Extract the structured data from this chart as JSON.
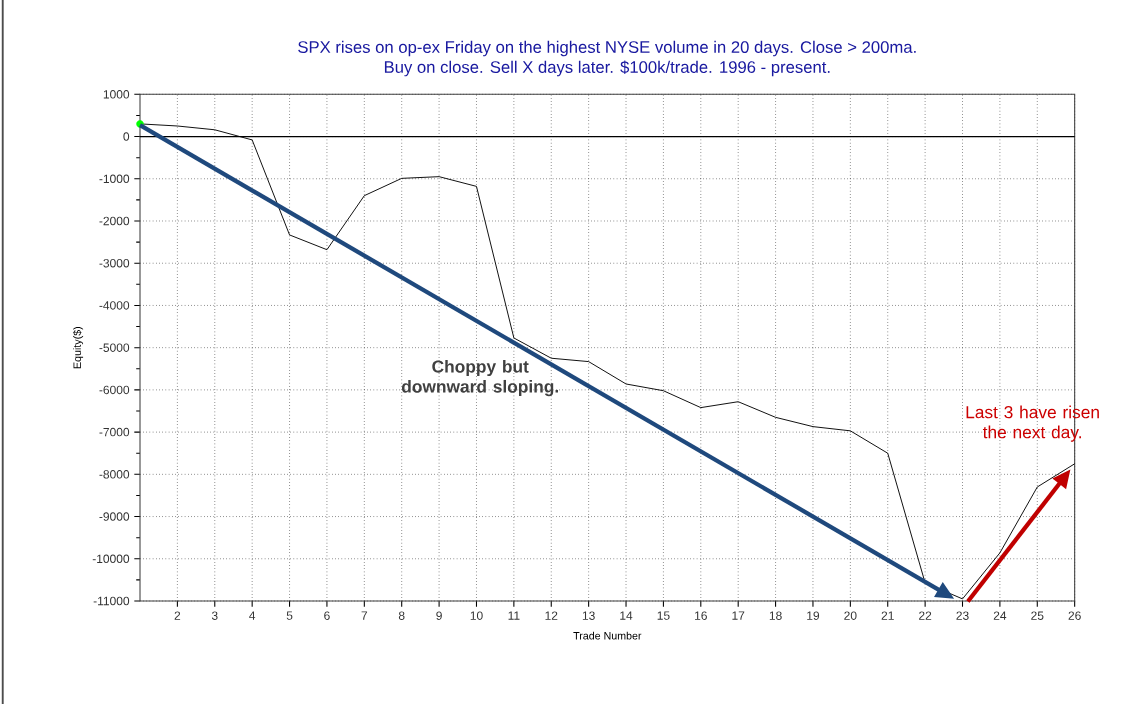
{
  "chart_data": {
    "type": "line",
    "title": "SPX rises on op-ex Friday on the highest NYSE volume in 20 days. Close > 200ma.\nBuy on close. Sell X days later. $100k/trade. 1996 - present.",
    "xlabel": "Trade Number",
    "ylabel": "Equity($)",
    "x": [
      1,
      2,
      3,
      4,
      5,
      6,
      7,
      8,
      9,
      10,
      11,
      12,
      13,
      14,
      15,
      16,
      17,
      18,
      19,
      20,
      21,
      22,
      23,
      24,
      25,
      26
    ],
    "series": [
      {
        "color": "#000000",
        "values": [
          300,
          250,
          160,
          -80,
          -2330,
          -2680,
          -1400,
          -990,
          -950,
          -1180,
          -4770,
          -5250,
          -5330,
          -5860,
          -6020,
          -6420,
          -6280,
          -6650,
          -6870,
          -6970,
          -7500,
          -10570,
          -10950,
          -9860,
          -8300,
          -7750
        ]
      },
      {
        "type": "scatter",
        "color": "#00ff00",
        "x": [
          1
        ],
        "values": [
          300
        ]
      }
    ],
    "xlim": [
      1,
      26
    ],
    "xticks": [
      2,
      3,
      4,
      5,
      6,
      7,
      8,
      9,
      10,
      11,
      12,
      13,
      14,
      15,
      16,
      17,
      18,
      19,
      20,
      21,
      22,
      23,
      24,
      25,
      26
    ],
    "ylim": [
      -11000,
      1000
    ],
    "yticks": [
      -11000,
      -10000,
      -9000,
      -8000,
      -7000,
      -6000,
      -5000,
      -4000,
      -3000,
      -2000,
      -1000,
      0,
      1000
    ],
    "grid": true,
    "ref_lines": [
      {
        "axis": "y",
        "value": 0,
        "color": "#000000"
      }
    ],
    "annotations": [
      "Choppy but downward sloping.",
      "Last 3 have risen the next day."
    ]
  }
}
